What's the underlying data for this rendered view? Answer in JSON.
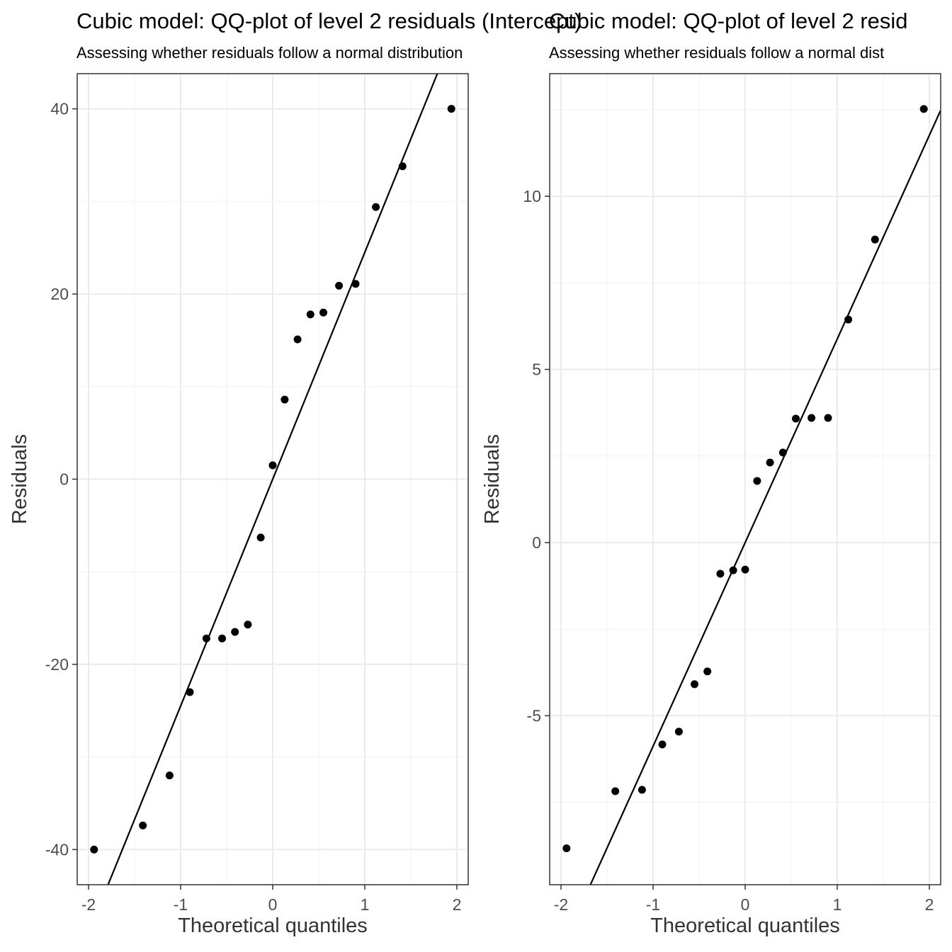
{
  "chart_data": [
    {
      "type": "scatter",
      "title": "Cubic model: QQ-plot of level 2 residuals (Intercept)",
      "subtitle": "Assessing whether residuals follow a normal distribution",
      "x_label": "Theoretical quantiles",
      "y_label": "Residuals",
      "x": [
        -1.94,
        -1.41,
        -1.12,
        -0.9,
        -0.72,
        -0.55,
        -0.41,
        -0.27,
        -0.13,
        0,
        0.13,
        0.27,
        0.41,
        0.55,
        0.72,
        0.9,
        1.12,
        1.41,
        1.94
      ],
      "values": [
        -40.0,
        -37.4,
        -32.0,
        -23.0,
        -17.2,
        -17.2,
        -16.5,
        -15.7,
        -6.3,
        1.5,
        8.6,
        15.1,
        17.8,
        18.0,
        20.9,
        21.1,
        29.4,
        33.8,
        40.0
      ],
      "reference_line": {
        "intercept": 0,
        "slope": 24.5
      },
      "color": "#000000",
      "xlim": [
        -2.123,
        2.123
      ],
      "xticks": [
        -2,
        -1,
        0,
        1,
        2
      ],
      "xminor": [
        -1.5,
        -0.5,
        0.5,
        1.5
      ],
      "ylim": [
        -43.8,
        43.8
      ],
      "yticks": [
        -40,
        -20,
        0,
        20,
        40
      ],
      "yminor": [
        -30,
        -10,
        10,
        30
      ],
      "grid": true
    },
    {
      "type": "scatter",
      "title": "Cubic model: QQ-plot of level 2 resid",
      "subtitle": "Assessing whether residuals follow a normal dist",
      "x_label": "Theoretical quantiles",
      "y_label": "Residuals",
      "x": [
        -1.94,
        -1.41,
        -1.12,
        -0.9,
        -0.72,
        -0.55,
        -0.41,
        -0.27,
        -0.13,
        0,
        0.13,
        0.27,
        0.41,
        0.55,
        0.72,
        0.9,
        1.12,
        1.41,
        1.94
      ],
      "values": [
        -8.83,
        -7.18,
        -7.14,
        -5.83,
        -5.46,
        -4.09,
        -3.72,
        -0.9,
        -0.8,
        -0.78,
        1.78,
        2.31,
        2.6,
        3.58,
        3.6,
        3.6,
        6.44,
        8.75,
        12.52
      ],
      "reference_line": {
        "intercept": 0,
        "slope": 5.88
      },
      "color": "#000000",
      "xlim": [
        -2.123,
        2.123
      ],
      "xticks": [
        -2,
        -1,
        0,
        1,
        2
      ],
      "xminor": [
        -1.5,
        -0.5,
        0.5,
        1.5
      ],
      "ylim": [
        -9.88,
        13.54
      ],
      "yticks": [
        -5,
        0,
        5,
        10
      ],
      "yminor": [
        -7.5,
        -2.5,
        2.5,
        7.5,
        12.5
      ],
      "grid": true
    }
  ]
}
